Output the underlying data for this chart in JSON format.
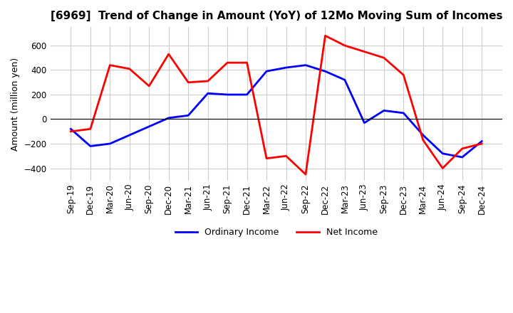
{
  "title": "[6969]  Trend of Change in Amount (YoY) of 12Mo Moving Sum of Incomes",
  "ylabel": "Amount (million yen)",
  "ylim": [
    -500,
    750
  ],
  "yticks": [
    -400,
    -200,
    0,
    200,
    400,
    600
  ],
  "x_labels": [
    "Sep-19",
    "Dec-19",
    "Mar-20",
    "Jun-20",
    "Sep-20",
    "Dec-20",
    "Mar-21",
    "Jun-21",
    "Sep-21",
    "Dec-21",
    "Mar-22",
    "Jun-22",
    "Sep-22",
    "Dec-22",
    "Mar-23",
    "Jun-23",
    "Sep-23",
    "Dec-23",
    "Mar-24",
    "Jun-24",
    "Sep-24",
    "Dec-24"
  ],
  "ordinary_income": [
    -80,
    -220,
    -200,
    -130,
    -60,
    10,
    30,
    210,
    200,
    200,
    390,
    420,
    440,
    390,
    320,
    -30,
    70,
    50,
    -130,
    -280,
    -310,
    -180
  ],
  "net_income": [
    -100,
    -80,
    440,
    410,
    270,
    530,
    300,
    310,
    460,
    460,
    -320,
    -300,
    -450,
    680,
    600,
    550,
    500,
    360,
    -170,
    -400,
    -240,
    -200
  ],
  "ordinary_color": "#0000ff",
  "net_color": "#ff0000",
  "grid_color": "#cccccc",
  "background_color": "#ffffff",
  "legend_labels": [
    "Ordinary Income",
    "Net Income"
  ]
}
